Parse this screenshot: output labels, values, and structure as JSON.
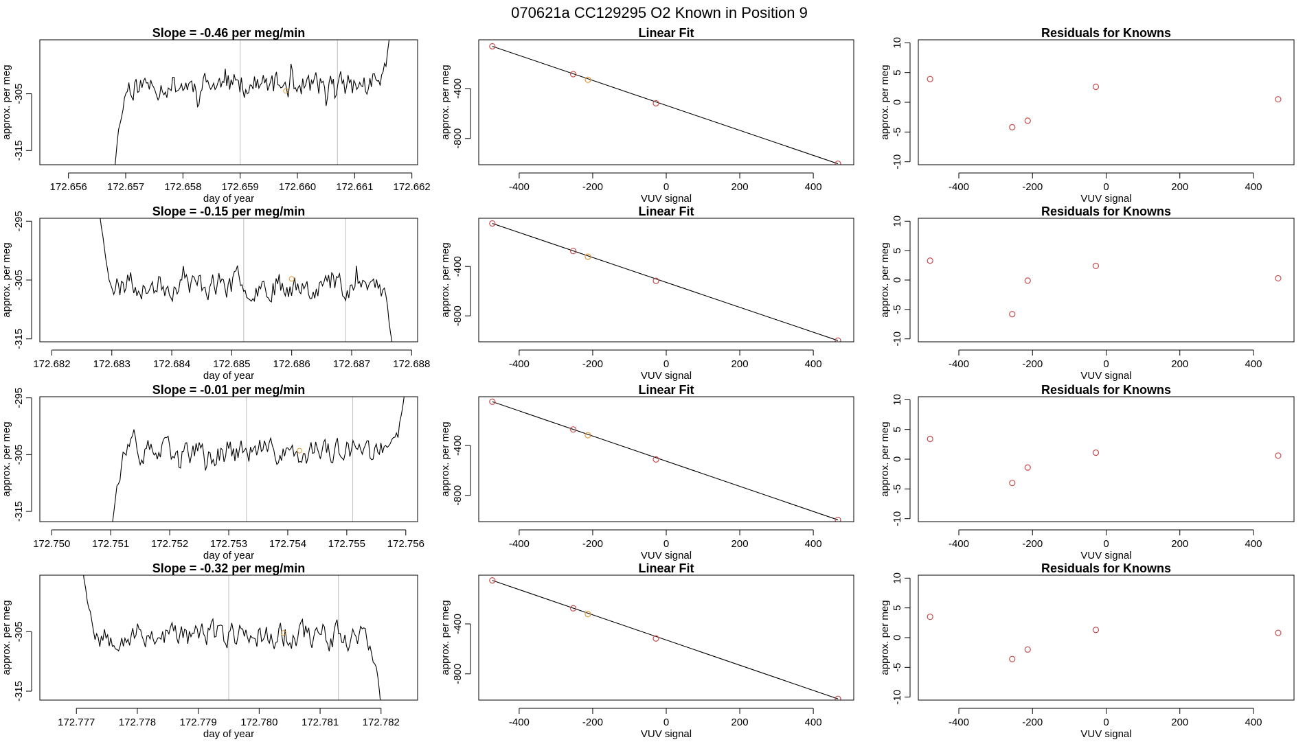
{
  "figure_title": "070621a      CC129295    O2 Known in Position  9",
  "chart_data": [
    {
      "type": "line",
      "panel": "timeseries",
      "title": "Slope =  -0.46  per meg/min",
      "xlabel": "day of year",
      "ylabel": "approx. per meg",
      "xlim": [
        172.6555,
        172.6621
      ],
      "ylim": [
        -317.5,
        -295.5
      ],
      "xticks": [
        "172.656",
        "172.657",
        "172.658",
        "172.659",
        "172.660",
        "172.661",
        "172.662"
      ],
      "xtick_values": [
        172.656,
        172.657,
        172.658,
        172.659,
        172.66,
        172.661,
        172.662
      ],
      "yticks": [
        "-305",
        "-315"
      ],
      "ytick_values": [
        -305,
        -315
      ],
      "vlines": [
        172.659,
        172.6607
      ],
      "series_start": 172.6568,
      "series_end": 172.66165,
      "seed": 11,
      "baseline": -303.5,
      "start_y": -319,
      "end_y": -291,
      "marker": {
        "x": 172.6598,
        "y": -304.5
      }
    },
    {
      "type": "scatter",
      "panel": "fit",
      "title": "Linear Fit",
      "xlabel": "VUV signal",
      "ylabel": "approx. per meg",
      "xlim": [
        -510,
        510
      ],
      "ylim": [
        -1010,
        -10
      ],
      "xticks": [
        "-400",
        "-200",
        "0",
        "200",
        "400"
      ],
      "xtick_values": [
        -400,
        -200,
        0,
        200,
        400
      ],
      "yticks": [
        "-400",
        "-800"
      ],
      "ytick_values": [
        -400,
        -800
      ],
      "x": [
        -473,
        -253,
        -213,
        -28,
        467
      ],
      "y": [
        -62,
        -285,
        -330,
        -518,
        -1002
      ],
      "point_colors": [
        "#c84a4a",
        "#c84a4a",
        "#e09a3a",
        "#c84a4a",
        "#c84a4a"
      ],
      "line": [
        [
          -473,
          -62
        ],
        [
          467,
          -1002
        ]
      ]
    },
    {
      "type": "scatter",
      "panel": "residuals",
      "title": "Residuals for Knowns",
      "xlabel": "VUV signal",
      "ylabel": "approx. per meg",
      "xlim": [
        -510,
        510
      ],
      "ylim": [
        -10.5,
        10.5
      ],
      "xticks": [
        "-400",
        "-200",
        "0",
        "200",
        "400"
      ],
      "xtick_values": [
        -400,
        -200,
        0,
        200,
        400
      ],
      "yticks": [
        "-10",
        "-5",
        "0",
        "5",
        "10"
      ],
      "ytick_values": [
        -10,
        -5,
        0,
        5,
        10
      ],
      "x": [
        -478,
        -255,
        -213,
        -28,
        467
      ],
      "y": [
        3.9,
        -4.2,
        -3.1,
        2.6,
        0.5
      ],
      "point_color": "#c84a4a"
    },
    {
      "type": "line",
      "panel": "timeseries",
      "title": "Slope =  -0.15  per meg/min",
      "xlabel": "day of year",
      "ylabel": "approx. per meg",
      "xlim": [
        172.6818,
        172.6881
      ],
      "ylim": [
        -315.5,
        -294.5
      ],
      "xticks": [
        "172.682",
        "172.683",
        "172.684",
        "172.685",
        "172.686",
        "172.687",
        "172.688"
      ],
      "xtick_values": [
        172.682,
        172.683,
        172.684,
        172.685,
        172.686,
        172.687,
        172.688
      ],
      "yticks": [
        "-295",
        "-305",
        "-315"
      ],
      "ytick_values": [
        -295,
        -305,
        -315
      ],
      "vlines": [
        172.6852,
        172.6869
      ],
      "series_start": 172.6828,
      "series_end": 172.6877,
      "seed": 23,
      "baseline": -305.8,
      "start_y": -294,
      "end_y": -318,
      "marker": {
        "x": 172.686,
        "y": -304.8
      }
    },
    {
      "type": "scatter",
      "panel": "fit",
      "title": "Linear Fit",
      "xlabel": "VUV signal",
      "ylabel": "approx. per meg",
      "xlim": [
        -510,
        510
      ],
      "ylim": [
        -1010,
        -10
      ],
      "xticks": [
        "-400",
        "-200",
        "0",
        "200",
        "400"
      ],
      "xtick_values": [
        -400,
        -200,
        0,
        200,
        400
      ],
      "yticks": [
        "-400",
        "-800"
      ],
      "ytick_values": [
        -400,
        -800
      ],
      "x": [
        -473,
        -253,
        -213,
        -28,
        467
      ],
      "y": [
        -52,
        -275,
        -322,
        -517,
        -1000
      ],
      "point_colors": [
        "#c84a4a",
        "#c84a4a",
        "#e09a3a",
        "#c84a4a",
        "#c84a4a"
      ],
      "line": [
        [
          -473,
          -52
        ],
        [
          467,
          -1000
        ]
      ]
    },
    {
      "type": "scatter",
      "panel": "residuals",
      "title": "Residuals for Knowns",
      "xlabel": "VUV signal",
      "ylabel": "approx. per meg",
      "xlim": [
        -510,
        510
      ],
      "ylim": [
        -10.5,
        10.5
      ],
      "xticks": [
        "-400",
        "-200",
        "0",
        "200",
        "400"
      ],
      "xtick_values": [
        -400,
        -200,
        0,
        200,
        400
      ],
      "yticks": [
        "-10",
        "-5",
        "0",
        "5",
        "10"
      ],
      "ytick_values": [
        -10,
        -5,
        0,
        5,
        10
      ],
      "x": [
        -478,
        -255,
        -213,
        -28,
        467
      ],
      "y": [
        3.3,
        -5.8,
        -0.1,
        2.4,
        0.3
      ],
      "point_color": "#c84a4a"
    },
    {
      "type": "line",
      "panel": "timeseries",
      "title": "Slope =  -0.01  per meg/min",
      "xlabel": "day of year",
      "ylabel": "approx. per meg",
      "xlim": [
        172.7498,
        172.7562
      ],
      "ylim": [
        -316.8,
        -294.8
      ],
      "xticks": [
        "172.750",
        "172.751",
        "172.752",
        "172.753",
        "172.754",
        "172.755",
        "172.756"
      ],
      "xtick_values": [
        172.75,
        172.751,
        172.752,
        172.753,
        172.754,
        172.755,
        172.756
      ],
      "yticks": [
        "-295",
        "-305",
        "-315"
      ],
      "ytick_values": [
        -295,
        -305,
        -315
      ],
      "vlines": [
        172.7533,
        172.7551
      ],
      "series_start": 172.751,
      "series_end": 172.756,
      "seed": 37,
      "baseline": -304.6,
      "start_y": -319,
      "end_y": -292,
      "marker": {
        "x": 172.7542,
        "y": -304.3
      }
    },
    {
      "type": "scatter",
      "panel": "fit",
      "title": "Linear Fit",
      "xlabel": "VUV signal",
      "ylabel": "approx. per meg",
      "xlim": [
        -510,
        510
      ],
      "ylim": [
        -1010,
        -10
      ],
      "xticks": [
        "-400",
        "-200",
        "0",
        "200",
        "400"
      ],
      "xtick_values": [
        -400,
        -200,
        0,
        200,
        400
      ],
      "yticks": [
        "-400",
        "-800"
      ],
      "ytick_values": [
        -400,
        -800
      ],
      "x": [
        -473,
        -253,
        -213,
        -28,
        467
      ],
      "y": [
        -50,
        -272,
        -318,
        -512,
        -996
      ],
      "point_colors": [
        "#c84a4a",
        "#c84a4a",
        "#e09a3a",
        "#c84a4a",
        "#c84a4a"
      ],
      "line": [
        [
          -473,
          -50
        ],
        [
          467,
          -996
        ]
      ]
    },
    {
      "type": "scatter",
      "panel": "residuals",
      "title": "Residuals for Knowns",
      "xlabel": "VUV signal",
      "ylabel": "approx. per meg",
      "xlim": [
        -510,
        510
      ],
      "ylim": [
        -10.5,
        10.5
      ],
      "xticks": [
        "-400",
        "-200",
        "0",
        "200",
        "400"
      ],
      "xtick_values": [
        -400,
        -200,
        0,
        200,
        400
      ],
      "yticks": [
        "-10",
        "-5",
        "0",
        "5",
        "10"
      ],
      "ytick_values": [
        -10,
        -5,
        0,
        5,
        10
      ],
      "x": [
        -478,
        -255,
        -213,
        -28,
        467
      ],
      "y": [
        3.4,
        -4.0,
        -1.4,
        1.1,
        0.6
      ],
      "point_color": "#c84a4a"
    },
    {
      "type": "line",
      "panel": "timeseries",
      "title": "Slope =  -0.32  per meg/min",
      "xlabel": "day of year",
      "ylabel": "approx. per meg",
      "xlim": [
        172.7764,
        172.7826
      ],
      "ylim": [
        -316.5,
        -295.5
      ],
      "xticks": [
        "172.777",
        "172.778",
        "172.779",
        "172.780",
        "172.781",
        "172.782"
      ],
      "xtick_values": [
        172.777,
        172.778,
        172.779,
        172.78,
        172.781,
        172.782
      ],
      "yticks": [
        "-305",
        "-315"
      ],
      "ytick_values": [
        -305,
        -315
      ],
      "vlines": [
        172.7795,
        172.7813
      ],
      "series_start": 172.7771,
      "series_end": 172.782,
      "seed": 53,
      "baseline": -305.5,
      "start_y": -294,
      "end_y": -318,
      "marker": {
        "x": 172.7804,
        "y": -305.2
      }
    },
    {
      "type": "scatter",
      "panel": "fit",
      "title": "Linear Fit",
      "xlabel": "VUV signal",
      "ylabel": "approx. per meg",
      "xlim": [
        -510,
        510
      ],
      "ylim": [
        -1010,
        -10
      ],
      "xticks": [
        "-400",
        "-200",
        "0",
        "200",
        "400"
      ],
      "xtick_values": [
        -400,
        -200,
        0,
        200,
        400
      ],
      "yticks": [
        "-400",
        "-800"
      ],
      "ytick_values": [
        -400,
        -800
      ],
      "x": [
        -473,
        -253,
        -213,
        -28,
        467
      ],
      "y": [
        -52,
        -275,
        -322,
        -517,
        -1000
      ],
      "point_colors": [
        "#c84a4a",
        "#c84a4a",
        "#e09a3a",
        "#c84a4a",
        "#c84a4a"
      ],
      "line": [
        [
          -473,
          -52
        ],
        [
          467,
          -1000
        ]
      ]
    },
    {
      "type": "scatter",
      "panel": "residuals",
      "title": "Residuals for Knowns",
      "xlabel": "VUV signal",
      "ylabel": "approx. per meg",
      "xlim": [
        -510,
        510
      ],
      "ylim": [
        -10.5,
        10.5
      ],
      "xticks": [
        "-400",
        "-200",
        "0",
        "200",
        "400"
      ],
      "xtick_values": [
        -400,
        -200,
        0,
        200,
        400
      ],
      "yticks": [
        "-10",
        "-5",
        "0",
        "5",
        "10"
      ],
      "ytick_values": [
        -10,
        -5,
        0,
        5,
        10
      ],
      "x": [
        -478,
        -255,
        -213,
        -28,
        467
      ],
      "y": [
        3.5,
        -3.6,
        -2.0,
        1.3,
        0.8
      ],
      "point_color": "#c84a4a"
    }
  ]
}
